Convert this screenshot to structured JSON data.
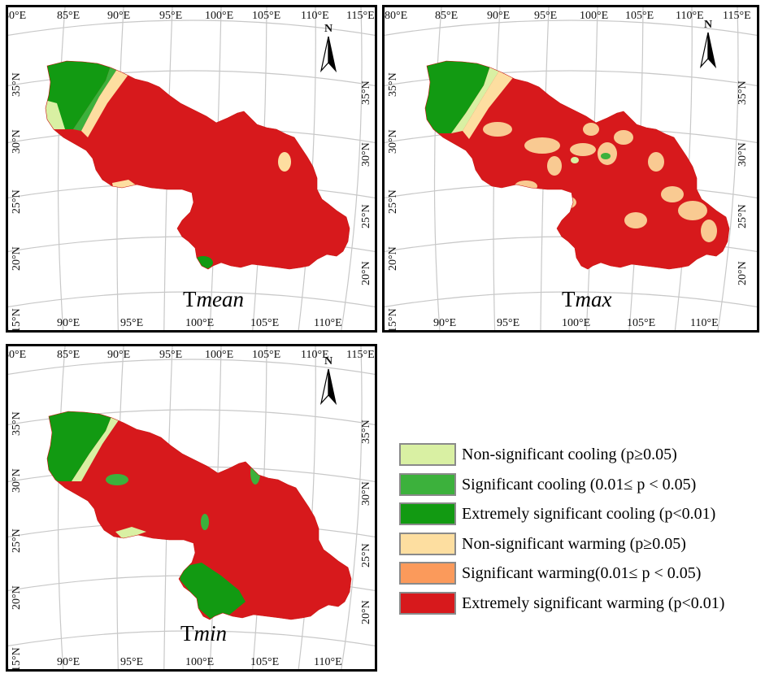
{
  "panels": [
    {
      "id": "tmean",
      "title_prefix": "T",
      "title_sub": "mean"
    },
    {
      "id": "tmax",
      "title_prefix": "T",
      "title_sub": "max"
    },
    {
      "id": "tmin",
      "title_prefix": "T",
      "title_sub": "min"
    }
  ],
  "axes": {
    "top_lon_labels": [
      "80°E",
      "85°E",
      "90°E",
      "95°E",
      "100°E",
      "105°E",
      "110°E",
      "115°E"
    ],
    "bottom_lon_labels": [
      "90°E",
      "95°E",
      "100°E",
      "105°E",
      "110°E"
    ],
    "left_lat_labels": [
      "35°N",
      "30°N",
      "25°N",
      "20°N",
      "15°N"
    ],
    "right_lat_labels": [
      "35°N",
      "30°N",
      "25°N",
      "20°N"
    ]
  },
  "north_arrow_label": "N",
  "legend": {
    "items": [
      {
        "label": "Non-significant cooling (p≥0.05)",
        "color": "#d9f0a3"
      },
      {
        "label": "Significant cooling (0.01≤ p < 0.05)",
        "color": "#3cb13c"
      },
      {
        "label": "Extremely significant cooling (p<0.01)",
        "color": "#129a12"
      },
      {
        "label": "Non-significant warming (p≥0.05)",
        "color": "#fddea0"
      },
      {
        "label": "Significant warming(0.01≤ p < 0.05)",
        "color": "#fb9a5b"
      },
      {
        "label": "Extremely significant warming (p<0.01)",
        "color": "#d7191c"
      }
    ]
  }
}
